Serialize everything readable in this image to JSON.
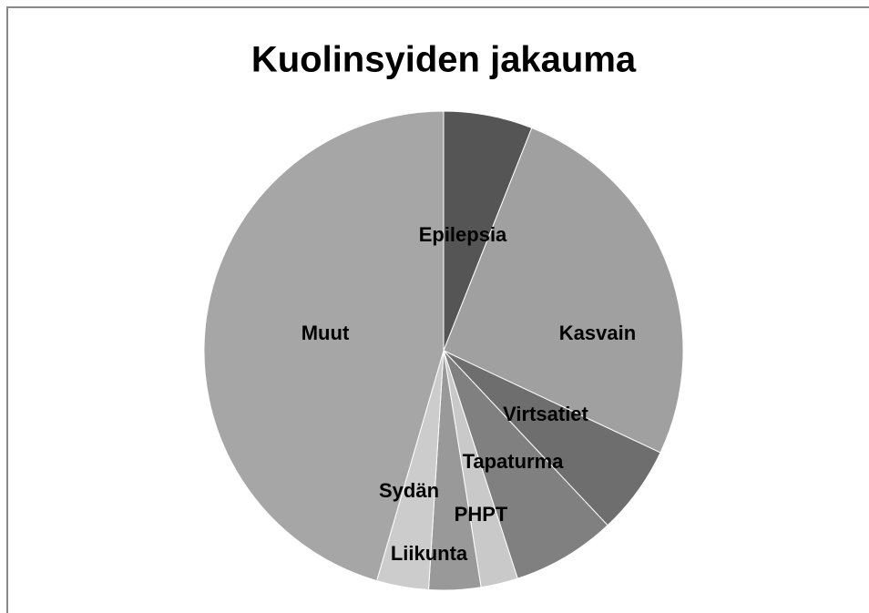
{
  "chart_data": {
    "type": "pie",
    "title": "Kuolinsyiden jakauma",
    "categories": [
      "Epilepsia",
      "Kasvain",
      "Virtsatiet",
      "Tapaturma",
      "PHPT",
      "Liikunta",
      "Sydän",
      "Muut"
    ],
    "values": [
      6,
      26,
      6,
      7,
      2.5,
      3.5,
      3.5,
      45.5
    ],
    "colors": [
      "#555555",
      "#a0a0a0",
      "#6e6e6e",
      "#808080",
      "#c9c9c9",
      "#999999",
      "#cccccc",
      "#a6a6a6"
    ]
  }
}
